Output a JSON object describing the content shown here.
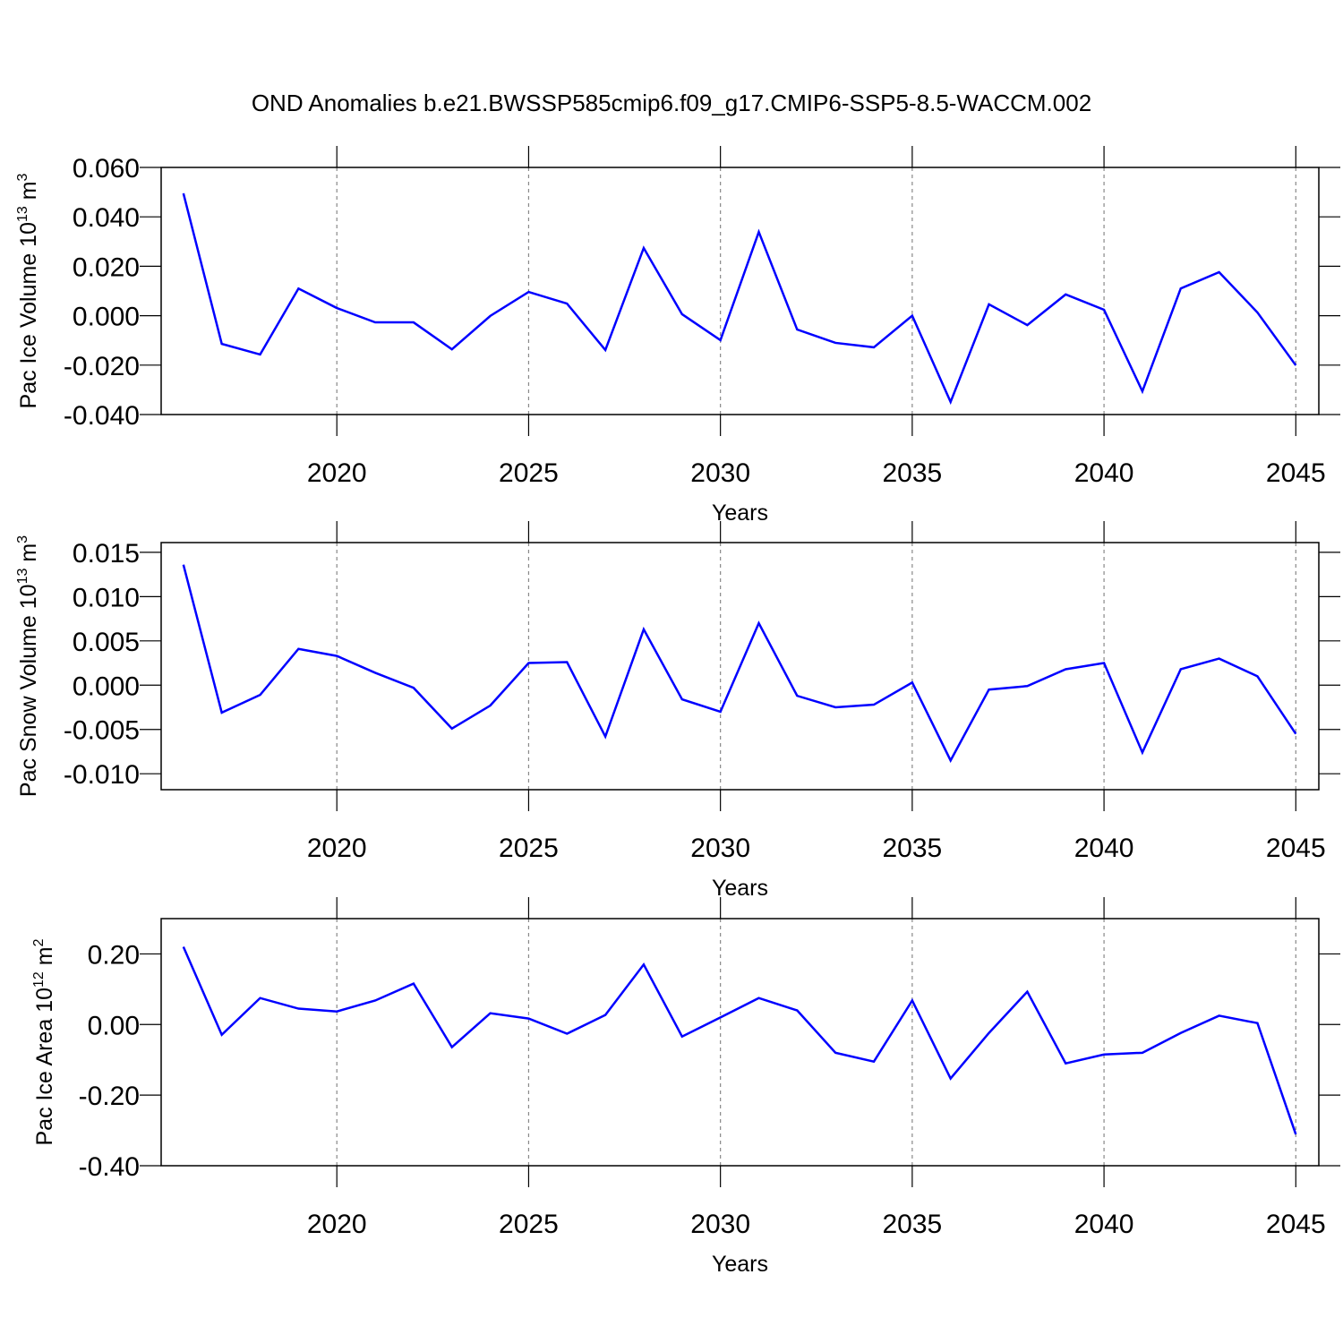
{
  "title": "OND Anomalies b.e21.BWSSP585cmip6.f09_g17.CMIP6-SSP5-8.5-WACCM.002",
  "chart_data": [
    {
      "type": "line",
      "ylabel": [
        "Pac Ice Volume 10",
        "13",
        " m",
        "3"
      ],
      "xlabel": "Years",
      "color": "#0000ff",
      "grid": "x",
      "x": [
        2016,
        2017,
        2018,
        2019,
        2020,
        2021,
        2022,
        2023,
        2024,
        2025,
        2026,
        2027,
        2028,
        2029,
        2030,
        2031,
        2032,
        2033,
        2034,
        2035,
        2036,
        2037,
        2038,
        2039,
        2040,
        2041,
        2042,
        2043,
        2044,
        2045
      ],
      "values": [
        0.0495,
        -0.0114,
        -0.0157,
        0.011,
        0.0031,
        -0.0027,
        -0.0027,
        -0.0136,
        -0.0001,
        0.0096,
        0.0049,
        -0.0139,
        0.0274,
        0.0006,
        -0.0099,
        0.0339,
        -0.0056,
        -0.011,
        -0.0128,
        0.0,
        -0.0349,
        0.0046,
        -0.0038,
        0.0086,
        0.0024,
        -0.0306,
        0.011,
        0.0176,
        0.0013,
        -0.0201
      ],
      "xlim": [
        2015.42,
        2045.6
      ],
      "xticks": [
        2020,
        2025,
        2030,
        2035,
        2040,
        2045
      ],
      "ylim": [
        -0.04,
        0.06
      ],
      "yticks": [
        {
          "value": -0.04,
          "label": "-0.040"
        },
        {
          "value": -0.02,
          "label": "-0.020"
        },
        {
          "value": 0,
          "label": "0.000"
        },
        {
          "value": 0.02,
          "label": "0.020"
        },
        {
          "value": 0.04,
          "label": "0.040"
        },
        {
          "value": 0.06,
          "label": "0.060"
        }
      ]
    },
    {
      "type": "line",
      "ylabel": [
        "Pac Snow Volume 10",
        "13",
        " m",
        "3"
      ],
      "xlabel": "Years",
      "color": "#0000ff",
      "grid": "x",
      "x": [
        2016,
        2017,
        2018,
        2019,
        2020,
        2021,
        2022,
        2023,
        2024,
        2025,
        2026,
        2027,
        2028,
        2029,
        2030,
        2031,
        2032,
        2033,
        2034,
        2035,
        2036,
        2037,
        2038,
        2039,
        2040,
        2041,
        2042,
        2043,
        2044,
        2045
      ],
      "values": [
        0.0136,
        -0.0031,
        -0.0011,
        0.0041,
        0.0033,
        0.0014,
        -0.0003,
        -0.0049,
        -0.0023,
        0.0025,
        0.0026,
        -0.0058,
        0.0063,
        -0.0016,
        -0.003,
        0.007,
        -0.0012,
        -0.0025,
        -0.0022,
        0.0003,
        -0.0085,
        -0.0005,
        -0.0001,
        0.0018,
        0.0025,
        -0.0076,
        0.0018,
        0.003,
        0.001,
        -0.0055
      ],
      "xlim": [
        2015.42,
        2045.6
      ],
      "xticks": [
        2020,
        2025,
        2030,
        2035,
        2040,
        2045
      ],
      "ylim": [
        -0.0118,
        0.0161
      ],
      "yticks": [
        {
          "value": -0.01,
          "label": "-0.010"
        },
        {
          "value": -0.005,
          "label": "-0.005"
        },
        {
          "value": 0,
          "label": "0.000"
        },
        {
          "value": 0.005,
          "label": "0.005"
        },
        {
          "value": 0.01,
          "label": "0.010"
        },
        {
          "value": 0.015,
          "label": "0.015"
        }
      ]
    },
    {
      "type": "line",
      "ylabel": [
        "Pac Ice Area 10",
        "12",
        " m",
        "2"
      ],
      "xlabel": "Years",
      "color": "#0000ff",
      "grid": "x",
      "x": [
        2016,
        2017,
        2018,
        2019,
        2020,
        2021,
        2022,
        2023,
        2024,
        2025,
        2026,
        2027,
        2028,
        2029,
        2030,
        2031,
        2032,
        2033,
        2034,
        2035,
        2036,
        2037,
        2038,
        2039,
        2040,
        2041,
        2042,
        2043,
        2044,
        2045
      ],
      "values": [
        0.22,
        -0.029,
        0.075,
        0.045,
        0.037,
        0.068,
        0.116,
        -0.064,
        0.032,
        0.017,
        -0.026,
        0.027,
        0.17,
        -0.034,
        0.02,
        0.075,
        0.04,
        -0.08,
        -0.105,
        0.068,
        -0.153,
        -0.024,
        0.093,
        -0.11,
        -0.085,
        -0.08,
        -0.024,
        0.025,
        0.004,
        -0.311
      ],
      "xlim": [
        2015.42,
        2045.6
      ],
      "xticks": [
        2020,
        2025,
        2030,
        2035,
        2040,
        2045
      ],
      "ylim": [
        -0.4,
        0.3
      ],
      "yticks": [
        {
          "value": -0.4,
          "label": "-0.40"
        },
        {
          "value": -0.2,
          "label": "-0.20"
        },
        {
          "value": 0,
          "label": "0.00"
        },
        {
          "value": 0.2,
          "label": "0.20"
        }
      ]
    }
  ]
}
